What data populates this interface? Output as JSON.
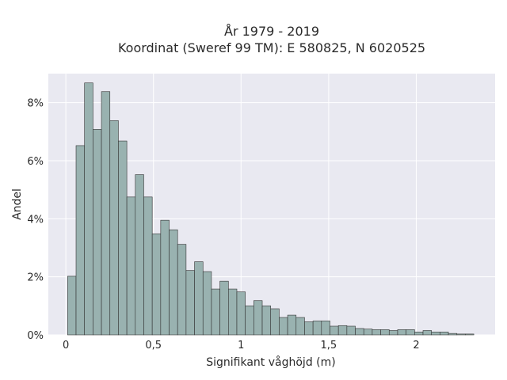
{
  "chart_data": {
    "type": "bar",
    "title_line1": "År 1979 - 2019",
    "title_line2": "Koordinat (Sweref 99 TM): E 580825, N 6020525",
    "xlabel": "Signifikant våghöjd (m)",
    "ylabel": "Andel",
    "xlim": [
      -0.1,
      2.45
    ],
    "ylim": [
      0,
      9.0
    ],
    "x_ticks": [
      0,
      0.5,
      1,
      1.5,
      2
    ],
    "x_tick_labels": [
      "0",
      "0,5",
      "1",
      "1,5",
      "2"
    ],
    "y_ticks": [
      0,
      2,
      4,
      6,
      8
    ],
    "y_tick_labels": [
      "0%",
      "2%",
      "4%",
      "6%",
      "8%"
    ],
    "bin_start": 0.01,
    "bin_width": 0.0483,
    "values": [
      2.02,
      6.52,
      8.68,
      7.08,
      8.38,
      7.38,
      6.68,
      4.75,
      5.52,
      4.75,
      3.48,
      3.95,
      3.62,
      3.12,
      2.22,
      2.52,
      2.18,
      1.58,
      1.85,
      1.58,
      1.48,
      1.0,
      1.18,
      1.0,
      0.9,
      0.6,
      0.68,
      0.6,
      0.45,
      0.48,
      0.48,
      0.3,
      0.32,
      0.3,
      0.22,
      0.2,
      0.18,
      0.18,
      0.15,
      0.18,
      0.18,
      0.1,
      0.15,
      0.1,
      0.1,
      0.05,
      0.03,
      0.03
    ],
    "grid": true,
    "bar_color": "#99b2b0",
    "bar_edge": "#333333",
    "plot_bg": "#e9e9f1"
  }
}
